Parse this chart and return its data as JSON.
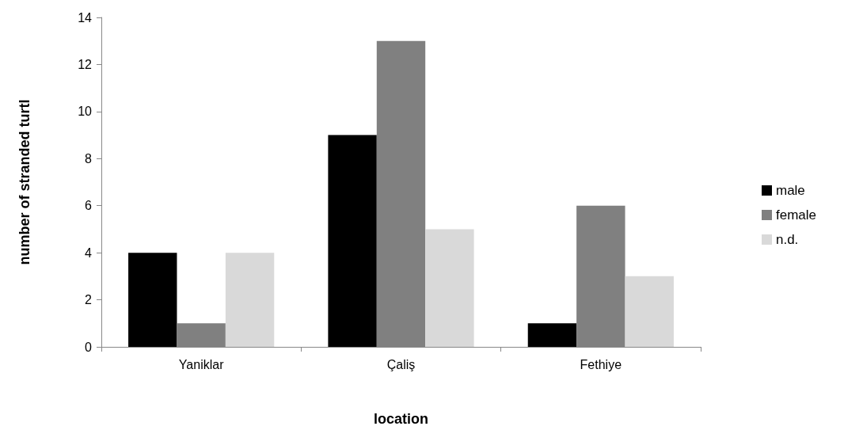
{
  "chart_data": {
    "type": "bar",
    "xlabel": "location",
    "ylabel": "number of stranded turtl",
    "categories": [
      "Yaniklar",
      "Çaliş",
      "Fethiye"
    ],
    "series": [
      {
        "name": "male",
        "color": "#000000",
        "values": [
          4,
          9,
          1
        ]
      },
      {
        "name": "female",
        "color": "#808080",
        "values": [
          1,
          13,
          6
        ]
      },
      {
        "name": "n.d.",
        "color": "#d9d9d9",
        "values": [
          4,
          5,
          3
        ]
      }
    ],
    "ylim": [
      0,
      14
    ],
    "yticks": [
      0,
      2,
      4,
      6,
      8,
      10,
      12,
      14
    ],
    "grid": false,
    "legend": "right"
  }
}
